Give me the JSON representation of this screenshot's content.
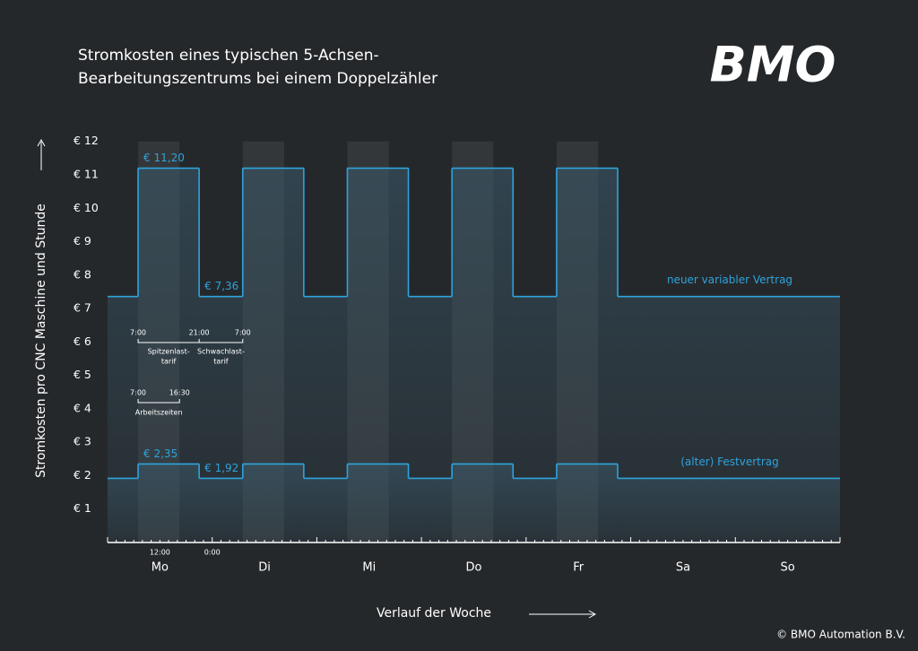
{
  "chart_data": {
    "type": "line",
    "step": "post",
    "title": [
      "Stromkosten eines typischen 5-Achsen-",
      "Bearbeitungszentrums bei einem Doppelzähler"
    ],
    "logo": "BMO",
    "copyright": "© BMO Automation B.V.",
    "ylabel": "Stromkosten pro CNC Maschine und Stunde",
    "xlabel": "Verlauf der Woche",
    "xlim": [
      0,
      168
    ],
    "ylim": [
      0,
      12
    ],
    "yticks": [
      {
        "value": 1,
        "label": "€ 1"
      },
      {
        "value": 2,
        "label": "€ 2"
      },
      {
        "value": 3,
        "label": "€ 3"
      },
      {
        "value": 4,
        "label": "€ 4"
      },
      {
        "value": 5,
        "label": "€ 5"
      },
      {
        "value": 6,
        "label": "€ 6"
      },
      {
        "value": 7,
        "label": "€ 7"
      },
      {
        "value": 8,
        "label": "€ 8"
      },
      {
        "value": 9,
        "label": "€ 9"
      },
      {
        "value": 10,
        "label": "€ 10"
      },
      {
        "value": 11,
        "label": "€ 11"
      },
      {
        "value": 12,
        "label": "€ 12"
      }
    ],
    "xticks": [
      0,
      2,
      4,
      6,
      8,
      10,
      12,
      14,
      16,
      18,
      20,
      22,
      24,
      26,
      28,
      30,
      32,
      34,
      36,
      38,
      40,
      42,
      44,
      46,
      48,
      50,
      52,
      54,
      56,
      58,
      60,
      62,
      64,
      66,
      68,
      70,
      72,
      74,
      76,
      78,
      80,
      82,
      84,
      86,
      88,
      90,
      92,
      94,
      96,
      98,
      100,
      102,
      104,
      106,
      108,
      110,
      112,
      114,
      116,
      118,
      120,
      122,
      124,
      126,
      128,
      130,
      132,
      134,
      136,
      138,
      140,
      142,
      144,
      146,
      148,
      150,
      152,
      154,
      156,
      158,
      160,
      162,
      164,
      166,
      168
    ],
    "day_labels": [
      {
        "value": 12,
        "label": "Mo"
      },
      {
        "value": 36,
        "label": "Di"
      },
      {
        "value": 60,
        "label": "Mi"
      },
      {
        "value": 84,
        "label": "Do"
      },
      {
        "value": 108,
        "label": "Fr"
      },
      {
        "value": 132,
        "label": "Sa"
      },
      {
        "value": 156,
        "label": "So"
      }
    ],
    "time_labels": [
      {
        "value": 12,
        "label": "12:00"
      },
      {
        "value": 24,
        "label": "0:00"
      }
    ],
    "work_hours": [
      [
        7,
        16.5
      ],
      [
        31,
        40.5
      ],
      [
        55,
        64.5
      ],
      [
        79,
        88.5
      ],
      [
        103,
        112.5
      ]
    ],
    "series": [
      {
        "name": "neuer variabler Vertrag",
        "color": "#2ea3dc",
        "x": [
          0,
          7,
          21,
          31,
          45,
          55,
          69,
          79,
          93,
          103,
          117
        ],
        "values": [
          7.36,
          11.2,
          7.36,
          11.2,
          7.36,
          11.2,
          7.36,
          11.2,
          7.36,
          11.2,
          7.36
        ]
      },
      {
        "name": "(alter) Festvertrag",
        "color": "#2ea3dc",
        "x": [
          0,
          7,
          21,
          31,
          45,
          55,
          69,
          79,
          93,
          103,
          117
        ],
        "values": [
          1.92,
          2.35,
          1.92,
          2.35,
          1.92,
          2.35,
          1.92,
          2.35,
          1.92,
          2.35,
          1.92
        ]
      }
    ],
    "value_annotations": [
      "€ 11,20",
      "€ 7,36",
      "€ 2,35",
      "€ 1,92"
    ],
    "tariff": {
      "times": [
        "7:00",
        "21:00",
        "7:00"
      ],
      "peak": [
        "Spitzenlast-",
        "tarif"
      ],
      "offpeak": [
        "Schwachlast-",
        "tarif"
      ]
    },
    "work": {
      "times": [
        "7:00",
        "16:30"
      ],
      "label": "Arbeitszeiten"
    }
  }
}
